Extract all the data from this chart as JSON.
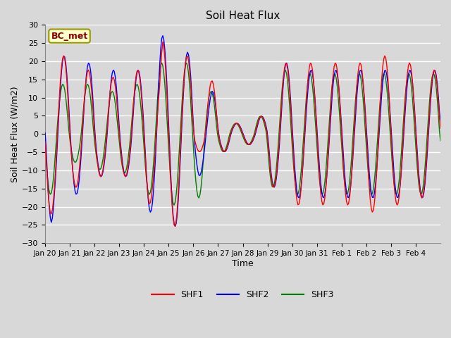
{
  "title": "Soil Heat Flux",
  "xlabel": "Time",
  "ylabel": "Soil Heat Flux (W/m2)",
  "ylim": [
    -30,
    30
  ],
  "yticks": [
    -30,
    -25,
    -20,
    -15,
    -10,
    -5,
    0,
    5,
    10,
    15,
    20,
    25,
    30
  ],
  "date_labels": [
    "Jan 20",
    "Jan 21",
    "Jan 22",
    "Jan 23",
    "Jan 24",
    "Jan 25",
    "Jan 26",
    "Jan 27",
    "Jan 28",
    "Jan 29",
    "Jan 30",
    "Jan 31",
    "Feb 1",
    "Feb 2",
    "Feb 3",
    "Feb 4"
  ],
  "bg_color": "#d8d8d8",
  "plot_bg_color": "#d8d8d8",
  "grid_color": "#ffffff",
  "legend_box_label": "BC_met",
  "legend_box_bg": "#ffffcc",
  "legend_box_edge": "#999900",
  "legend_box_text_color": "#880000",
  "color_shf1": "red",
  "color_shf2": "blue",
  "color_shf3": "green",
  "linewidth": 1.0
}
